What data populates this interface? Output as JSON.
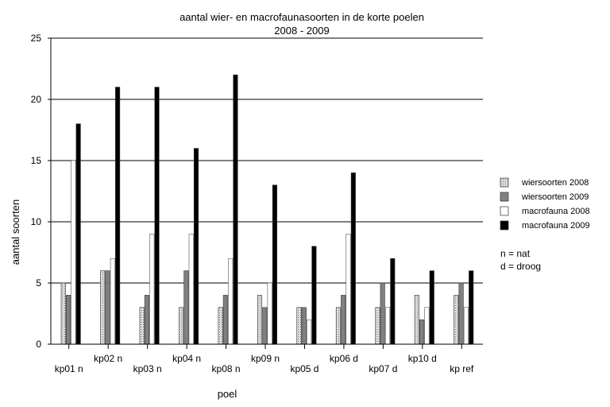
{
  "chart_data": {
    "type": "bar",
    "title": "aantal wier- en macrofaunasoorten in de korte poelen",
    "subtitle": "2008 - 2009",
    "xlabel": "poel",
    "ylabel": "aantal soorten",
    "ylim": [
      0,
      25
    ],
    "yticks": [
      "0",
      "5",
      "10",
      "15",
      "20",
      "25"
    ],
    "grid": true,
    "legend_position": "right",
    "categories": [
      "kp01 n",
      "kp02 n",
      "kp03 n",
      "kp04 n",
      "kp08 n",
      "kp09 n",
      "kp05 d",
      "kp06 d",
      "kp07 d",
      "kp10 d",
      "kp ref"
    ],
    "series": [
      {
        "name": "wiersoorten 2008",
        "color": "#d8d8d8",
        "pattern": "dotted",
        "values": [
          5,
          6,
          3,
          3,
          3,
          4,
          3,
          3,
          3,
          4,
          4
        ]
      },
      {
        "name": "wiersoorten 2009",
        "color": "#808080",
        "pattern": "solid",
        "values": [
          4,
          6,
          4,
          6,
          4,
          3,
          3,
          4,
          5,
          2,
          5
        ]
      },
      {
        "name": "macrofauna 2008",
        "color": "#ffffff",
        "pattern": "solid",
        "values": [
          15,
          7,
          9,
          9,
          7,
          5,
          2,
          9,
          3,
          3,
          3
        ]
      },
      {
        "name": "macrofauna 2009",
        "color": "#000000",
        "pattern": "solid",
        "values": [
          18,
          21,
          21,
          16,
          22,
          13,
          8,
          14,
          7,
          6,
          6
        ]
      }
    ],
    "notes": [
      "n = nat",
      "d = droog"
    ]
  }
}
